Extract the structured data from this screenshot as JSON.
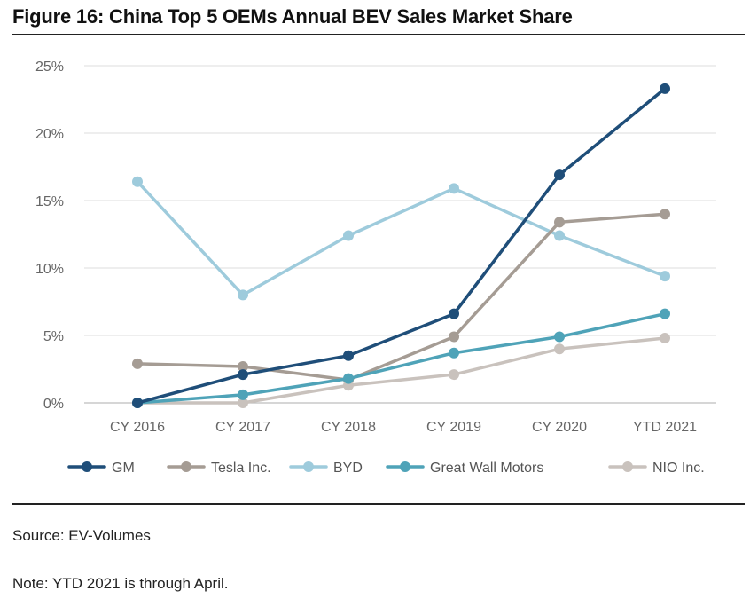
{
  "title": "Figure 16: China Top 5 OEMs Annual BEV Sales Market Share",
  "source": "Source: EV-Volumes",
  "note": "Note: YTD 2021 is through April.",
  "chart_data": {
    "type": "line",
    "title": "Figure 16: China Top 5 OEMs Annual BEV Sales Market Share",
    "xlabel": "",
    "ylabel": "",
    "categories": [
      "CY 2016",
      "CY 2017",
      "CY 2018",
      "CY 2019",
      "CY 2020",
      "YTD 2021"
    ],
    "ylim": [
      0,
      25
    ],
    "yticks": [
      0,
      5,
      10,
      15,
      20,
      25
    ],
    "ytick_labels": [
      "0%",
      "5%",
      "10%",
      "15%",
      "20%",
      "25%"
    ],
    "grid": true,
    "legend_position": "bottom",
    "series": [
      {
        "name": "GM",
        "color": "#1f4e79",
        "values": [
          0.0,
          2.1,
          3.5,
          6.6,
          16.9,
          23.3
        ]
      },
      {
        "name": "Tesla Inc.",
        "color": "#a59c94",
        "values": [
          2.9,
          2.7,
          1.7,
          4.9,
          13.4,
          14.0
        ]
      },
      {
        "name": "BYD",
        "color": "#9ecbdc",
        "values": [
          16.4,
          8.0,
          12.4,
          15.9,
          12.4,
          9.4
        ]
      },
      {
        "name": "Great Wall Motors",
        "color": "#4fa3b8",
        "values": [
          0.0,
          0.6,
          1.8,
          3.7,
          4.9,
          6.6
        ]
      },
      {
        "name": "NIO Inc.",
        "color": "#c9c2bd",
        "values": [
          0.0,
          0.0,
          1.3,
          2.1,
          4.0,
          4.8
        ]
      }
    ]
  }
}
